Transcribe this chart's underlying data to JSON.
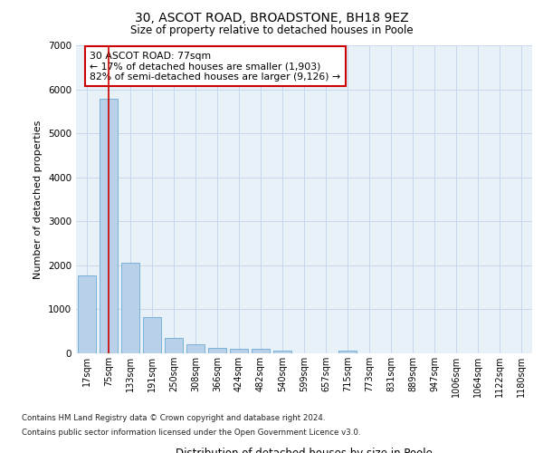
{
  "title_line1": "30, ASCOT ROAD, BROADSTONE, BH18 9EZ",
  "title_line2": "Size of property relative to detached houses in Poole",
  "xlabel": "Distribution of detached houses by size in Poole",
  "ylabel": "Number of detached properties",
  "categories": [
    "17sqm",
    "75sqm",
    "133sqm",
    "191sqm",
    "250sqm",
    "308sqm",
    "366sqm",
    "424sqm",
    "482sqm",
    "540sqm",
    "599sqm",
    "657sqm",
    "715sqm",
    "773sqm",
    "831sqm",
    "889sqm",
    "947sqm",
    "1006sqm",
    "1064sqm",
    "1122sqm",
    "1180sqm"
  ],
  "values": [
    1780,
    5780,
    2060,
    820,
    360,
    210,
    115,
    95,
    95,
    70,
    0,
    0,
    70,
    0,
    0,
    0,
    0,
    0,
    0,
    0,
    0
  ],
  "bar_color": "#b8d0e8",
  "bar_edge_color": "#6aaad4",
  "grid_color": "#c8d8ec",
  "background_color": "#e8f0f8",
  "red_line_x": 1.0,
  "annotation_text": "30 ASCOT ROAD: 77sqm\n← 17% of detached houses are smaller (1,903)\n82% of semi-detached houses are larger (9,126) →",
  "annotation_box_color": "#ffffff",
  "annotation_box_edge_color": "#cc0000",
  "ylim": [
    0,
    7000
  ],
  "yticks": [
    0,
    1000,
    2000,
    3000,
    4000,
    5000,
    6000,
    7000
  ],
  "footnote1": "Contains HM Land Registry data © Crown copyright and database right 2024.",
  "footnote2": "Contains public sector information licensed under the Open Government Licence v3.0."
}
